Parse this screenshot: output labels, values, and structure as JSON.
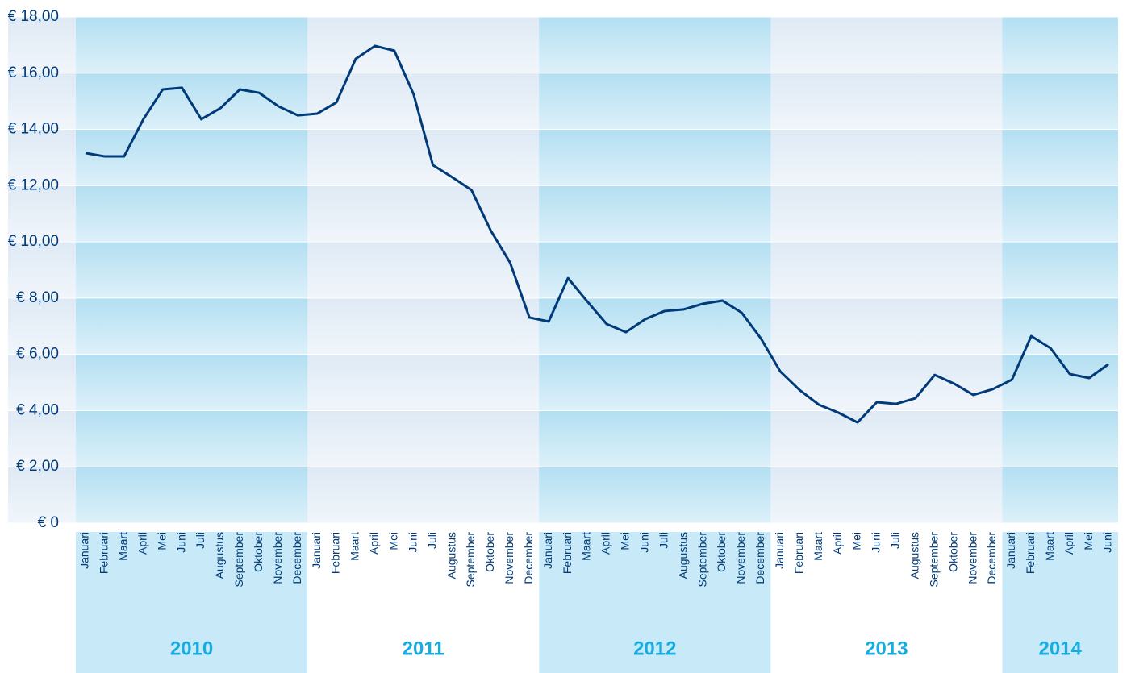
{
  "chart_data": {
    "type": "line",
    "groups": [
      {
        "label": "2010",
        "categories": [
          "Januari",
          "Februari",
          "Maart",
          "April",
          "Mei",
          "Juni",
          "Juli",
          "Augustus",
          "September",
          "Oktober",
          "November",
          "December"
        ]
      },
      {
        "label": "2011",
        "categories": [
          "Januari",
          "Februari",
          "Maart",
          "April",
          "Mei",
          "Juni",
          "Juli",
          "Augustus",
          "September",
          "Oktober",
          "November",
          "December"
        ]
      },
      {
        "label": "2012",
        "categories": [
          "Januari",
          "Februari",
          "Maart",
          "April",
          "Mei",
          "Juni",
          "Juli",
          "Augustus",
          "September",
          "Oktober",
          "November",
          "December"
        ]
      },
      {
        "label": "2013",
        "categories": [
          "Januari",
          "Februari",
          "Maart",
          "April",
          "Mei",
          "Juni",
          "Juli",
          "Augustus",
          "September",
          "Oktober",
          "November",
          "December"
        ]
      },
      {
        "label": "2014",
        "categories": [
          "Januari",
          "Februari",
          "Maart",
          "April",
          "Mei",
          "Juni"
        ]
      }
    ],
    "series": [
      {
        "color": "#003a78",
        "values": [
          13.16,
          13.04,
          13.04,
          14.36,
          15.42,
          15.48,
          14.36,
          14.76,
          15.42,
          15.3,
          14.82,
          14.5,
          14.56,
          14.96,
          16.51,
          16.97,
          16.8,
          15.25,
          12.73,
          12.3,
          11.84,
          10.4,
          9.26,
          7.31,
          7.17,
          8.71,
          7.88,
          7.08,
          6.79,
          7.25,
          7.54,
          7.6,
          7.8,
          7.91,
          7.48,
          6.56,
          5.39,
          4.73,
          4.21,
          3.93,
          3.58,
          4.3,
          4.24,
          4.44,
          5.27,
          4.96,
          4.56,
          4.76,
          5.1,
          6.65,
          6.22,
          5.3,
          5.16,
          5.65
        ]
      }
    ],
    "ylim": [
      0,
      18
    ],
    "yticks": [
      {
        "value": 0,
        "label": "€ 0"
      },
      {
        "value": 2,
        "label": "€ 2,00"
      },
      {
        "value": 4,
        "label": "€ 4,00"
      },
      {
        "value": 6,
        "label": "€ 6,00"
      },
      {
        "value": 8,
        "label": "€ 8,00"
      },
      {
        "value": 10,
        "label": "€ 10,00"
      },
      {
        "value": 12,
        "label": "€ 12,00"
      },
      {
        "value": 14,
        "label": "€ 14,00"
      },
      {
        "value": 16,
        "label": "€ 16,00"
      },
      {
        "value": 18,
        "label": "€ 18,00"
      }
    ],
    "grid": true
  }
}
